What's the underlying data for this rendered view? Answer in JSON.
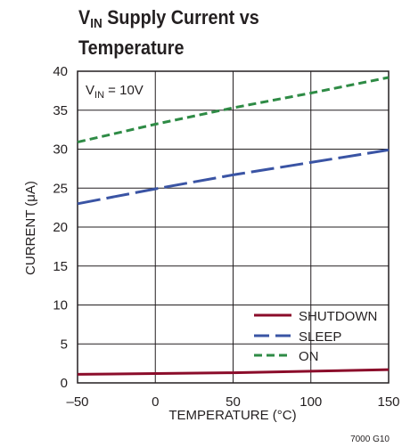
{
  "title": {
    "line1_pre": "V",
    "line1_sub": "IN",
    "line1_post": " Supply Current vs",
    "line2": "Temperature"
  },
  "annotation": {
    "pre": "V",
    "sub": "IN",
    "post": " = 10V"
  },
  "figure_code": "7000 G10",
  "colors": {
    "shutdown": "#8b0c2a",
    "sleep": "#3a54a4",
    "on": "#2e8b45",
    "grid": "#231f20"
  },
  "chart_data": {
    "type": "line",
    "xlabel": "TEMPERATURE (°C)",
    "ylabel": "CURRENT (μA)",
    "xlim": [
      -50,
      150
    ],
    "ylim": [
      0,
      40
    ],
    "xticks": [
      -50,
      0,
      50,
      100,
      150
    ],
    "xtick_labels": [
      "–50",
      "0",
      "50",
      "100",
      "150"
    ],
    "yticks": [
      0,
      5,
      10,
      15,
      20,
      25,
      30,
      35,
      40
    ],
    "grid": true,
    "legend_position": "bottom-right",
    "series": [
      {
        "name": "SHUTDOWN",
        "style": "solid",
        "x": [
          -50,
          0,
          50,
          100,
          150
        ],
        "y": [
          1.1,
          1.2,
          1.3,
          1.5,
          1.7
        ]
      },
      {
        "name": "SLEEP",
        "style": "long-dash",
        "x": [
          -50,
          0,
          50,
          100,
          150
        ],
        "y": [
          23.0,
          24.9,
          26.7,
          28.3,
          29.9
        ]
      },
      {
        "name": "ON",
        "style": "dash",
        "x": [
          -50,
          0,
          50,
          100,
          150
        ],
        "y": [
          30.9,
          33.2,
          35.3,
          37.2,
          39.2
        ]
      }
    ]
  }
}
